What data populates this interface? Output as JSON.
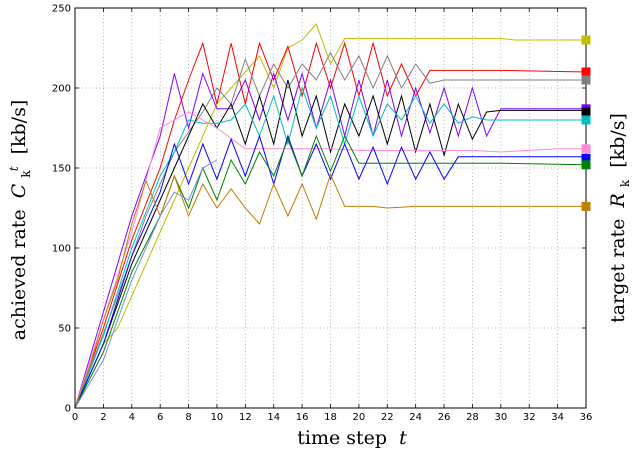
{
  "chart_data": {
    "type": "line",
    "xlabel": "time step",
    "xlabel_var": "t",
    "ylabel": "achieved rate",
    "ylabel_var": "C",
    "ylabel_sub": "k",
    "ylabel_sup": "t",
    "ylabel_unit": "[kb/s]",
    "y2label": "target rate",
    "y2label_var": "R",
    "y2label_sub": "k",
    "y2label_unit": "[kb/s]",
    "xlim": [
      0,
      36
    ],
    "ylim": [
      0,
      250
    ],
    "xticks": [
      0,
      2,
      4,
      6,
      8,
      10,
      12,
      14,
      16,
      18,
      20,
      22,
      24,
      26,
      28,
      30,
      32,
      34,
      36
    ],
    "yticks": [
      0,
      50,
      100,
      150,
      200,
      250
    ],
    "grid": true,
    "grid_style": "dotted",
    "series": [
      {
        "color": "#bfbf00",
        "x": [
          0,
          1,
          2,
          3,
          4,
          5,
          6,
          7,
          8,
          9,
          10,
          11,
          12,
          13,
          14,
          15,
          16,
          17,
          18,
          19,
          20,
          22,
          24,
          26,
          28,
          30,
          31,
          36
        ],
        "y": [
          0,
          20,
          40,
          50,
          70,
          90,
          110,
          130,
          150,
          170,
          190,
          200,
          210,
          220,
          200,
          225,
          230,
          240,
          215,
          231,
          231,
          231,
          231,
          231,
          231,
          231,
          230,
          230
        ],
        "target": 230
      },
      {
        "color": "#ff0000",
        "x": [
          0,
          2,
          4,
          6,
          7,
          8,
          9,
          10,
          11,
          12,
          13,
          14,
          15,
          16,
          17,
          18,
          19,
          20,
          21,
          22,
          23,
          24,
          25,
          26,
          28,
          30,
          36
        ],
        "y": [
          0,
          50,
          105,
          150,
          180,
          205,
          228,
          190,
          228,
          190,
          228,
          205,
          226,
          195,
          228,
          200,
          228,
          195,
          228,
          195,
          215,
          195,
          211,
          211,
          211,
          211,
          210
        ],
        "target": 210
      },
      {
        "color": "#808080",
        "x": [
          0,
          3,
          5,
          7,
          9,
          10,
          11,
          12,
          13,
          14,
          15,
          16,
          17,
          18,
          19,
          20,
          21,
          22,
          23,
          24,
          25,
          26,
          30,
          36
        ],
        "y": [
          0,
          70,
          120,
          160,
          185,
          200,
          190,
          218,
          195,
          215,
          200,
          215,
          205,
          222,
          205,
          220,
          200,
          220,
          200,
          215,
          203,
          205,
          205,
          205
        ],
        "target": 205
      },
      {
        "color": "#7f00ff",
        "x": [
          0,
          2,
          4,
          6,
          7,
          8,
          9,
          10,
          11,
          12,
          13,
          14,
          15,
          16,
          17,
          18,
          19,
          20,
          21,
          22,
          23,
          24,
          25,
          26,
          27,
          28,
          29,
          30,
          36
        ],
        "y": [
          0,
          60,
          120,
          170,
          209,
          175,
          209,
          187,
          187,
          205,
          180,
          209,
          180,
          209,
          175,
          205,
          170,
          205,
          170,
          205,
          170,
          200,
          172,
          200,
          170,
          200,
          170,
          187,
          187
        ],
        "target": 187
      },
      {
        "color": "#000000",
        "x": [
          0,
          2,
          4,
          6,
          7,
          8,
          9,
          10,
          11,
          12,
          13,
          14,
          15,
          16,
          17,
          18,
          19,
          20,
          21,
          22,
          23,
          24,
          25,
          26,
          27,
          28,
          29,
          30,
          36
        ],
        "y": [
          0,
          40,
          90,
          130,
          150,
          170,
          190,
          175,
          190,
          165,
          195,
          165,
          205,
          170,
          195,
          160,
          190,
          170,
          195,
          165,
          195,
          160,
          190,
          158,
          190,
          168,
          185,
          186,
          186
        ],
        "target": 185
      },
      {
        "color": "#00bfbf",
        "x": [
          0,
          2,
          4,
          6,
          7,
          8,
          9,
          10,
          11,
          12,
          13,
          14,
          15,
          16,
          17,
          18,
          19,
          20,
          21,
          22,
          23,
          24,
          25,
          26,
          27,
          28,
          29,
          30,
          36
        ],
        "y": [
          0,
          45,
          100,
          145,
          160,
          180,
          178,
          178,
          180,
          190,
          170,
          195,
          165,
          200,
          175,
          195,
          165,
          195,
          170,
          190,
          180,
          195,
          178,
          190,
          178,
          182,
          180,
          180,
          180
        ],
        "target": 180
      },
      {
        "color": "#ff8ad8",
        "x": [
          0,
          2,
          4,
          6,
          8,
          10,
          12,
          14,
          16,
          18,
          20,
          22,
          24,
          26,
          28,
          30,
          32,
          34,
          36
        ],
        "y": [
          0,
          55,
          110,
          175,
          185,
          175,
          162,
          162,
          162,
          162,
          161,
          161,
          161,
          161,
          161,
          160,
          161,
          162,
          162
        ],
        "target": 162
      },
      {
        "color": "#0000ff",
        "x": [
          0,
          2,
          4,
          6,
          7,
          8,
          9,
          10,
          11,
          12,
          13,
          14,
          15,
          16,
          17,
          18,
          19,
          20,
          21,
          22,
          23,
          24,
          25,
          26,
          27,
          28,
          30,
          36
        ],
        "y": [
          0,
          40,
          95,
          135,
          165,
          140,
          165,
          143,
          168,
          145,
          170,
          140,
          170,
          145,
          165,
          143,
          165,
          143,
          163,
          140,
          163,
          143,
          160,
          143,
          157,
          157,
          157,
          157
        ],
        "target": 156
      },
      {
        "color": "#007f00",
        "x": [
          0,
          2,
          4,
          6,
          7,
          8,
          9,
          10,
          11,
          12,
          13,
          14,
          15,
          16,
          17,
          18,
          19,
          20,
          21,
          22,
          23,
          24,
          26,
          28,
          30,
          36
        ],
        "y": [
          0,
          35,
          85,
          120,
          145,
          125,
          150,
          130,
          155,
          140,
          160,
          145,
          168,
          145,
          170,
          148,
          170,
          153,
          153,
          153,
          153,
          153,
          153,
          153,
          153,
          152
        ],
        "target": 152
      },
      {
        "color": "#bf7f00",
        "x": [
          0,
          1,
          2,
          3,
          4,
          5,
          6,
          7,
          8,
          9,
          10,
          11,
          12,
          13,
          14,
          15,
          16,
          17,
          18,
          19,
          20,
          21,
          22,
          24,
          26,
          28,
          30,
          36
        ],
        "y": [
          0,
          25,
          55,
          80,
          115,
          142,
          120,
          145,
          120,
          140,
          125,
          137,
          125,
          115,
          140,
          120,
          140,
          118,
          146,
          126,
          126,
          126,
          125,
          126,
          126,
          126,
          126,
          126
        ],
        "target": 126
      },
      {
        "color": "#6f93d8",
        "x": [
          0,
          2,
          4,
          6,
          7,
          8,
          9,
          10
        ],
        "y": [
          0,
          30,
          80,
          120,
          135,
          130,
          150,
          155
        ],
        "target": null
      }
    ]
  }
}
